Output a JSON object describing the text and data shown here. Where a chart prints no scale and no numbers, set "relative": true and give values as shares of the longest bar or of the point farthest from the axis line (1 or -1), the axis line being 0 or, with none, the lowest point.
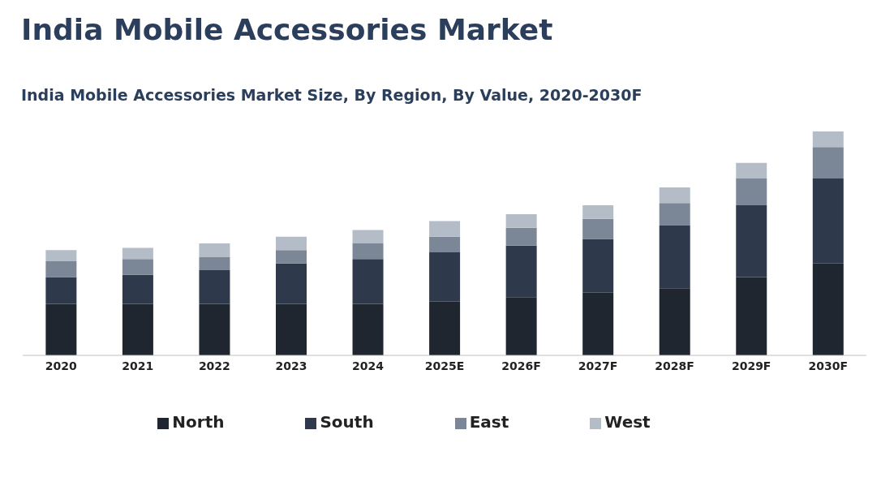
{
  "chart_data": {
    "type": "bar",
    "title": "India Mobile Accessories Market",
    "subtitle": "India Mobile Accessories Market Size, By Region, By Value, 2020-2030F",
    "categories": [
      "2020",
      "2021",
      "2022",
      "2023",
      "2024",
      "2025E",
      "2026F",
      "2027F",
      "2028F",
      "2029F",
      "2030F"
    ],
    "series": [
      {
        "name": "North",
        "color": "#1f2630",
        "values": [
          0.23,
          0.23,
          0.23,
          0.23,
          0.23,
          0.24,
          0.26,
          0.28,
          0.3,
          0.35,
          0.41
        ]
      },
      {
        "name": "South",
        "color": "#2e3a4c",
        "values": [
          0.12,
          0.13,
          0.15,
          0.18,
          0.2,
          0.22,
          0.23,
          0.24,
          0.28,
          0.32,
          0.38
        ]
      },
      {
        "name": "East",
        "color": "#7b8797",
        "values": [
          0.07,
          0.07,
          0.06,
          0.06,
          0.07,
          0.07,
          0.08,
          0.09,
          0.1,
          0.12,
          0.14
        ]
      },
      {
        "name": "West",
        "color": "#b4bcc7",
        "values": [
          0.05,
          0.05,
          0.06,
          0.06,
          0.06,
          0.07,
          0.06,
          0.06,
          0.07,
          0.07,
          0.07
        ]
      }
    ],
    "stacked": true,
    "relative": true,
    "legend": "bottom",
    "grid": false
  }
}
